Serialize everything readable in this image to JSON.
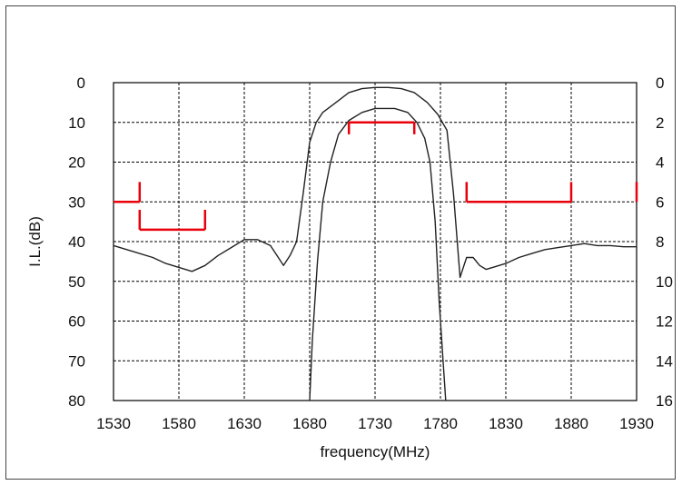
{
  "chart_data": {
    "type": "line",
    "xlabel": "frequency(MHz)",
    "ylabel": "I.L.(dB)",
    "xlim": [
      1530,
      1930
    ],
    "ylim": [
      80,
      0
    ],
    "y2lim": [
      16,
      0
    ],
    "x_ticks": [
      "1530",
      "1580",
      "1630",
      "1680",
      "1730",
      "1780",
      "1830",
      "1880",
      "1930"
    ],
    "y_ticks": [
      "0",
      "10",
      "20",
      "30",
      "40",
      "50",
      "60",
      "70",
      "80"
    ],
    "y2_ticks": [
      "0",
      "2",
      "4",
      "6",
      "8",
      "10",
      "12",
      "14",
      "16"
    ],
    "grid": true,
    "colors": {
      "curves": "#222222",
      "spec": "#e8000a",
      "grid": "#000000"
    },
    "series": [
      {
        "axis": "left",
        "points": [
          [
            1530,
            41
          ],
          [
            1545,
            42.5
          ],
          [
            1560,
            44
          ],
          [
            1570,
            45.5
          ],
          [
            1580,
            46.5
          ],
          [
            1590,
            47.5
          ],
          [
            1600,
            46
          ],
          [
            1610,
            43.5
          ],
          [
            1620,
            41.5
          ],
          [
            1630,
            39.5
          ],
          [
            1640,
            39.5
          ],
          [
            1650,
            41
          ],
          [
            1660,
            46
          ],
          [
            1665,
            43.5
          ],
          [
            1670,
            40
          ],
          [
            1675,
            28
          ],
          [
            1680,
            15
          ],
          [
            1685,
            10
          ],
          [
            1690,
            7.5
          ],
          [
            1700,
            5
          ],
          [
            1710,
            2.5
          ],
          [
            1720,
            1.5
          ],
          [
            1730,
            1.2
          ],
          [
            1740,
            1.2
          ],
          [
            1750,
            1.5
          ],
          [
            1760,
            2.5
          ],
          [
            1770,
            5
          ],
          [
            1778,
            8
          ],
          [
            1785,
            12
          ],
          [
            1790,
            28
          ],
          [
            1795,
            49
          ],
          [
            1800,
            44
          ],
          [
            1805,
            44
          ],
          [
            1810,
            46
          ],
          [
            1815,
            47
          ],
          [
            1820,
            46.5
          ],
          [
            1830,
            45.5
          ],
          [
            1840,
            44
          ],
          [
            1850,
            43
          ],
          [
            1860,
            42
          ],
          [
            1870,
            41.5
          ],
          [
            1880,
            41
          ],
          [
            1890,
            40.5
          ],
          [
            1900,
            41
          ],
          [
            1910,
            41
          ],
          [
            1920,
            41.3
          ],
          [
            1930,
            41.3
          ]
        ]
      },
      {
        "axis": "right",
        "points": [
          [
            1680,
            16
          ],
          [
            1682,
            13
          ],
          [
            1686,
            9
          ],
          [
            1690,
            6
          ],
          [
            1696,
            4
          ],
          [
            1702,
            2.6
          ],
          [
            1710,
            1.9
          ],
          [
            1720,
            1.5
          ],
          [
            1730,
            1.3
          ],
          [
            1745,
            1.3
          ],
          [
            1755,
            1.5
          ],
          [
            1762,
            2
          ],
          [
            1768,
            2.8
          ],
          [
            1772,
            4
          ],
          [
            1776,
            7
          ],
          [
            1779,
            11
          ],
          [
            1782,
            14
          ],
          [
            1784,
            16
          ]
        ]
      }
    ],
    "spec_masks": [
      {
        "axis": "left",
        "x": [
          1530,
          1550
        ],
        "y": 30,
        "tick_up_at": 1550,
        "tick_to": 25
      },
      {
        "axis": "left",
        "x": [
          1550,
          1600
        ],
        "y": 37,
        "tick_up_at": [
          1550,
          1600
        ],
        "tick_to": 32
      },
      {
        "axis": "left",
        "x": [
          1710,
          1760
        ],
        "y": 10,
        "tick_down_at": [
          1710,
          1760
        ],
        "tick_to": 13
      },
      {
        "axis": "left",
        "x": [
          1800,
          1880
        ],
        "y": 30,
        "tick_up_at": [
          1800,
          1880
        ],
        "tick_to": 25
      },
      {
        "axis": "left",
        "x": [
          1930,
          1930
        ],
        "y": 25,
        "tick_to": 30
      }
    ]
  }
}
